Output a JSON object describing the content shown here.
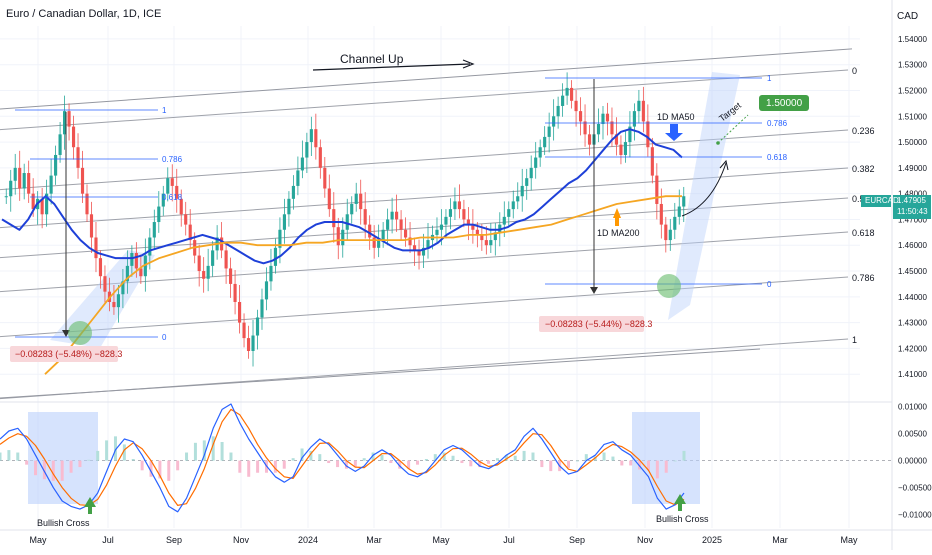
{
  "header": {
    "symbol_title": "Euro / Canadian Dollar, 1D, ICE",
    "currency": "CAD"
  },
  "colors": {
    "background": "#ffffff",
    "axis_text": "#131722",
    "grid": "#f0f3fa",
    "channel": "#9598a1",
    "fib": "#2962ff",
    "ma50": "#1e40d8",
    "ma200": "#f5a623",
    "up_candle": "#26a69a",
    "down_candle": "#ef5350",
    "price_label_bg": "#26a69a",
    "target_bg": "#43a047",
    "measure_bg": "#f8d7da",
    "measure_text": "#b71c1c",
    "highlight_box": "#bbd0fb",
    "green_circle": "#66bb6a",
    "macd_line": "#2962ff",
    "signal_line": "#ff6d00",
    "arrow_green": "#43a047",
    "arrow_blue": "#2962ff",
    "arrow_orange": "#ff9800"
  },
  "chart_data": [
    {
      "type": "line",
      "title": "Euro / Canadian Dollar, 1D, ICE",
      "x_ticks": [
        "May",
        "Jul",
        "Sep",
        "Nov",
        "2024",
        "Mar",
        "May",
        "Jul",
        "Sep",
        "Nov",
        "2025",
        "Mar",
        "May"
      ],
      "y_ticks": [
        "1.54000",
        "1.53000",
        "1.52000",
        "1.51000",
        "1.50000",
        "1.49000",
        "1.48000",
        "1.47000",
        "1.46000",
        "1.45000",
        "1.44000",
        "1.43000",
        "1.42000",
        "1.41000"
      ],
      "ylim": [
        1.4,
        1.545
      ],
      "last_price": {
        "symbol": "EURCAD",
        "value": "1.47905",
        "countdown": "11:50:43"
      },
      "series": [
        {
          "name": "",
          "values": [
            1.479,
            1.485,
            1.49,
            1.482,
            1.488,
            1.48,
            1.474,
            1.478,
            1.472,
            1.48,
            1.487,
            1.495,
            1.503,
            1.512,
            1.506,
            1.498,
            1.49,
            1.48,
            1.472,
            1.463,
            1.455,
            1.448,
            1.442,
            1.438,
            1.436,
            1.441,
            1.446,
            1.452,
            1.457,
            1.451,
            1.448,
            1.456,
            1.463,
            1.469,
            1.475,
            1.48,
            1.486,
            1.483,
            1.478,
            1.472,
            1.468,
            1.462,
            1.456,
            1.45,
            1.447,
            1.452,
            1.458,
            1.463,
            1.458,
            1.451,
            1.445,
            1.438,
            1.43,
            1.424,
            1.419,
            1.425,
            1.432,
            1.439,
            1.446,
            1.452,
            1.459,
            1.466,
            1.472,
            1.478,
            1.483,
            1.489,
            1.494,
            1.5,
            1.505,
            1.498,
            1.49,
            1.482,
            1.474,
            1.467,
            1.46,
            1.466,
            1.472,
            1.476,
            1.48,
            1.474,
            1.468,
            1.463,
            1.459,
            1.462,
            1.466,
            1.47,
            1.473,
            1.47,
            1.466,
            1.463,
            1.46,
            1.458,
            1.456,
            1.459,
            1.462,
            1.464,
            1.466,
            1.468,
            1.471,
            1.474,
            1.477,
            1.474,
            1.47,
            1.468,
            1.466,
            1.464,
            1.462,
            1.46,
            1.462,
            1.465,
            1.468,
            1.471,
            1.474,
            1.477,
            1.479,
            1.483,
            1.486,
            1.49,
            1.494,
            1.498,
            1.502,
            1.506,
            1.51,
            1.514,
            1.518,
            1.521,
            1.516,
            1.512,
            1.508,
            1.503,
            1.499,
            1.503,
            1.507,
            1.511,
            1.508,
            1.503,
            1.499,
            1.495,
            1.5,
            1.506,
            1.512,
            1.516,
            1.508,
            1.498,
            1.487,
            1.476,
            1.468,
            1.462,
            1.466,
            1.471,
            1.475,
            1.479
          ]
        },
        {
          "name": "1D MA50",
          "values": [
            1.47,
            1.468,
            1.466,
            1.47,
            1.476,
            1.479,
            1.476,
            1.471,
            1.466,
            1.462,
            1.459,
            1.457,
            1.456,
            1.455,
            1.455,
            1.455,
            1.456,
            1.458,
            1.459,
            1.46,
            1.461,
            1.462,
            1.463,
            1.464,
            1.463,
            1.462,
            1.46,
            1.458,
            1.456,
            1.454,
            1.453,
            1.454,
            1.456,
            1.459,
            1.463,
            1.466,
            1.468,
            1.469,
            1.469,
            1.469,
            1.468,
            1.467,
            1.465,
            1.463,
            1.461,
            1.459,
            1.458,
            1.458,
            1.458,
            1.459,
            1.461,
            1.464,
            1.466,
            1.468,
            1.468,
            1.467,
            1.466,
            1.466,
            1.467,
            1.469,
            1.47,
            1.472,
            1.475,
            1.478,
            1.481,
            1.484,
            1.486,
            1.489,
            1.493,
            1.497,
            1.501,
            1.504,
            1.505,
            1.504,
            1.502,
            1.499,
            1.498,
            1.497,
            1.494
          ]
        },
        {
          "name": "1D MA200",
          "values": [
            1.41,
            1.416,
            1.424,
            1.432,
            1.44,
            1.447,
            1.452,
            1.455,
            1.457,
            1.459,
            1.46,
            1.461,
            1.461,
            1.46,
            1.46,
            1.46,
            1.461,
            1.461,
            1.462,
            1.462,
            1.462,
            1.462,
            1.462,
            1.463,
            1.463,
            1.463,
            1.464,
            1.464,
            1.465,
            1.466,
            1.467,
            1.468,
            1.47,
            1.472,
            1.474,
            1.476,
            1.477,
            1.478,
            1.479,
            1.479
          ]
        }
      ],
      "labels": {
        "channel": "Channel Up",
        "ma50": "1D MA50",
        "ma200": "1D MA200",
        "target_word": "Target",
        "target_value": "1.50000",
        "measure_left": "−0.08283 (−5.48%) −828.3",
        "measure_right": "−0.08283 (−5.44%) −828.3"
      },
      "fib_left": [
        "1",
        "0.786",
        "0.618",
        "0"
      ],
      "fib_right": [
        "1",
        "0.786",
        "0.618",
        "0"
      ],
      "channel_levels": [
        "0",
        "0.236",
        "0.382",
        "0.5",
        "0.618",
        "0.786",
        "1"
      ]
    },
    {
      "type": "line",
      "title": "",
      "y_ticks": [
        "0.01000",
        "0.00500",
        "0.00000",
        "−0.00500",
        "−0.01000"
      ],
      "ylim": [
        -0.0125,
        0.0105
      ],
      "labels": {
        "bull_left": "Bullish Cross",
        "bull_right": "Bullish Cross"
      },
      "series": [
        {
          "name": "",
          "values": [
            0.004,
            0.0055,
            0.006,
            0.004,
            0.001,
            -0.002,
            -0.005,
            -0.0075,
            -0.0085,
            -0.009,
            -0.0082,
            -0.006,
            -0.002,
            0.002,
            0.004,
            0.0035,
            0.001,
            -0.002,
            -0.005,
            -0.0085,
            -0.0095,
            -0.007,
            -0.003,
            0.001,
            0.006,
            0.0095,
            0.0105,
            0.007,
            0.004,
            0.0015,
            -0.001,
            -0.003,
            -0.004,
            -0.003,
            0.0005,
            0.0025,
            0.004,
            0.003,
            0.001,
            -0.001,
            -0.002,
            -0.001,
            0.001,
            0.002,
            0.001,
            -0.001,
            -0.0025,
            -0.003,
            -0.002,
            0,
            0.002,
            0.0028,
            0.002,
            0.0005,
            -0.001,
            -0.0015,
            -0.0005,
            0.001,
            0.002,
            0.0045,
            0.006,
            0.004,
            0.0015,
            -0.001,
            -0.0025,
            -0.002,
            0,
            0.001,
            0.003,
            0.0035,
            0.002,
            0.001,
            -0.001,
            -0.003,
            -0.007,
            -0.009,
            -0.0082,
            -0.006
          ]
        },
        {
          "name": "",
          "values": [
            0.003,
            0.0042,
            0.005,
            0.0045,
            0.0028,
            0.0003,
            -0.0025,
            -0.005,
            -0.007,
            -0.0082,
            -0.0083,
            -0.0072,
            -0.0045,
            -0.001,
            0.002,
            0.0033,
            0.0022,
            0,
            -0.0028,
            -0.006,
            -0.0083,
            -0.008,
            -0.0052,
            -0.0015,
            0.003,
            0.0072,
            0.0095,
            0.0085,
            0.006,
            0.003,
            0.0005,
            -0.0015,
            -0.003,
            -0.0033,
            -0.001,
            0.0013,
            0.0032,
            0.0033,
            0.0018,
            0,
            -0.0012,
            -0.0013,
            0,
            0.0013,
            0.0013,
            0,
            -0.0015,
            -0.0025,
            -0.0022,
            -0.0008,
            0.001,
            0.0022,
            0.0023,
            0.0012,
            -0.0002,
            -0.0011,
            -0.0008,
            0.0003,
            0.0014,
            0.0033,
            0.005,
            0.0048,
            0.0028,
            0.0003,
            -0.0016,
            -0.002,
            -0.0008,
            0.0005,
            0.002,
            0.003,
            0.0026,
            0.0016,
            0.0001,
            -0.0018,
            -0.0048,
            -0.0075,
            -0.0082,
            -0.0072
          ]
        }
      ]
    }
  ]
}
